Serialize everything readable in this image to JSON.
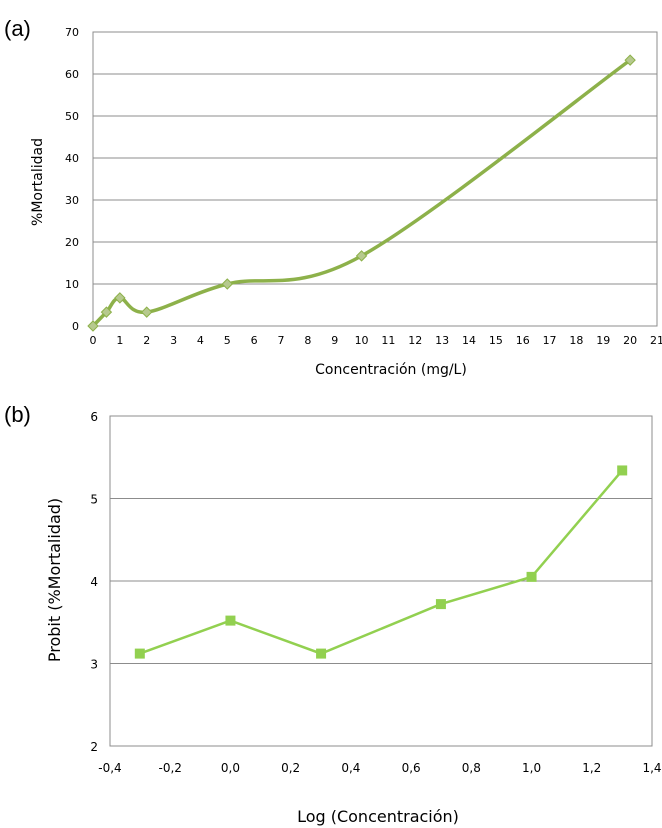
{
  "panels": {
    "a_label": "(a)",
    "b_label": "(b)"
  },
  "colors": {
    "series_a": "#8db14a",
    "marker_a": "#b6c98e",
    "series_b": "#92d050",
    "grid": "#8c8c8c"
  },
  "chart_data": [
    {
      "type": "line",
      "smooth": true,
      "marker": "diamond",
      "xlabel": "Concentración (mg/L)",
      "ylabel": "%Mortalidad",
      "xlim": [
        0,
        21
      ],
      "ylim": [
        0,
        70
      ],
      "x_ticks": [
        "0",
        "1",
        "2",
        "3",
        "4",
        "5",
        "6",
        "7",
        "8",
        "9",
        "10",
        "11",
        "12",
        "13",
        "14",
        "15",
        "16",
        "17",
        "18",
        "19",
        "20",
        "21"
      ],
      "y_ticks": [
        "0",
        "10",
        "20",
        "30",
        "40",
        "50",
        "60",
        "70"
      ],
      "grid": "horizontal",
      "series": [
        {
          "x": [
            0,
            0.5,
            1,
            2,
            5,
            10,
            20
          ],
          "y": [
            0,
            3.3,
            6.7,
            3.3,
            10,
            16.7,
            63.3
          ]
        }
      ]
    },
    {
      "type": "line",
      "marker": "square",
      "xlabel": "Log (Concentración)",
      "ylabel": "Probit (%Mortalidad)",
      "xlim": [
        -0.4,
        1.4
      ],
      "ylim": [
        2,
        6
      ],
      "x_ticks": [
        "-0,4",
        "-0,2",
        "0,0",
        "0,2",
        "0,4",
        "0,6",
        "0,8",
        "1,0",
        "1,2",
        "1,4"
      ],
      "y_ticks": [
        "2",
        "3",
        "4",
        "5",
        "6"
      ],
      "grid": "horizontal",
      "series": [
        {
          "x": [
            -0.301,
            0.0,
            0.301,
            0.699,
            1.0,
            1.301
          ],
          "y": [
            3.12,
            3.52,
            3.12,
            3.72,
            4.05,
            5.34
          ]
        }
      ]
    }
  ]
}
